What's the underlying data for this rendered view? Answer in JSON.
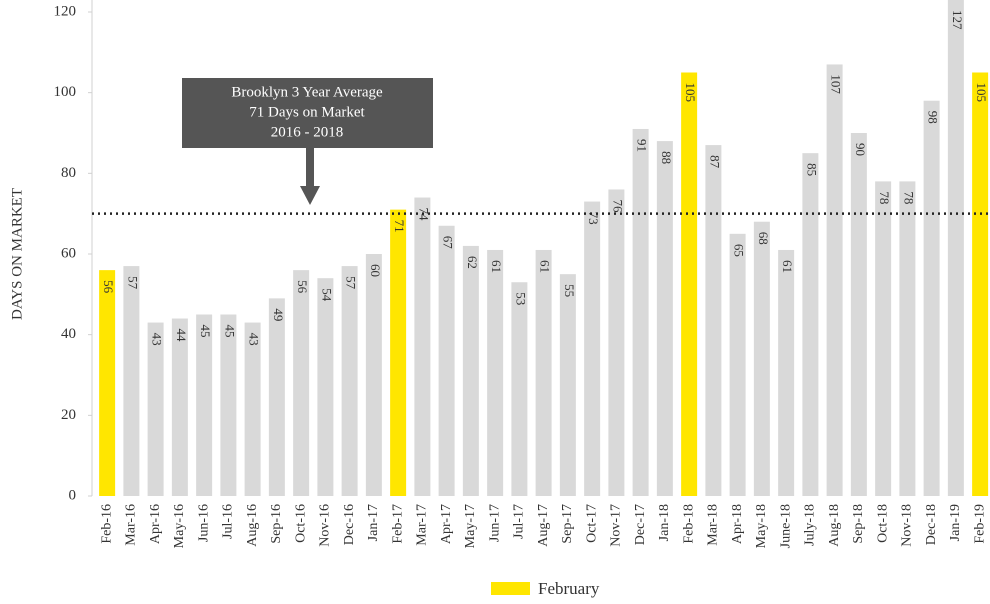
{
  "chart_data": {
    "type": "bar",
    "y_label": "DAYS ON MARKET",
    "categories": [
      "Feb-16",
      "Mar-16",
      "Apr-16",
      "May-16",
      "Jun-16",
      "Jul-16",
      "Aug-16",
      "Sep-16",
      "Oct-16",
      "Nov-16",
      "Dec-16",
      "Jan-17",
      "Feb-17",
      "Mar-17",
      "Apr-17",
      "May-17",
      "Jun-17",
      "Jul-17",
      "Aug-17",
      "Sep-17",
      "Oct-17",
      "Nov-17",
      "Dec-17",
      "Jan-18",
      "Feb-18",
      "Mar-18",
      "Apr-18",
      "May-18",
      "June-18",
      "July-18",
      "Aug-18",
      "Sep-18",
      "Oct-18",
      "Nov-18",
      "Dec-18",
      "Jan-19",
      "Feb-19"
    ],
    "values": [
      56,
      57,
      43,
      44,
      45,
      45,
      43,
      49,
      56,
      54,
      57,
      60,
      71,
      74,
      67,
      62,
      61,
      53,
      61,
      55,
      73,
      76,
      91,
      88,
      105,
      87,
      65,
      68,
      61,
      85,
      107,
      90,
      78,
      78,
      98,
      127,
      105
    ],
    "colors": [
      "#ffe600",
      "#d9d9d9",
      "#d9d9d9",
      "#d9d9d9",
      "#d9d9d9",
      "#d9d9d9",
      "#d9d9d9",
      "#d9d9d9",
      "#d9d9d9",
      "#d9d9d9",
      "#d9d9d9",
      "#d9d9d9",
      "#ffe600",
      "#d9d9d9",
      "#d9d9d9",
      "#d9d9d9",
      "#d9d9d9",
      "#d9d9d9",
      "#d9d9d9",
      "#d9d9d9",
      "#d9d9d9",
      "#d9d9d9",
      "#d9d9d9",
      "#d9d9d9",
      "#ffe600",
      "#d9d9d9",
      "#d9d9d9",
      "#d9d9d9",
      "#d9d9d9",
      "#d9d9d9",
      "#d9d9d9",
      "#d9d9d9",
      "#d9d9d9",
      "#d9d9d9",
      "#d9d9d9",
      "#d9d9d9",
      "#ffe600"
    ],
    "ylim": [
      0,
      120
    ],
    "yticks": [
      0,
      20,
      40,
      60,
      80,
      100,
      120
    ],
    "grid": false,
    "average_line": 70,
    "annotation": {
      "lines": [
        "Brooklyn 3 Year Average",
        "71 Days on Market",
        "2016 - 2018"
      ]
    },
    "legend": [
      {
        "label": "February",
        "color": "#ffe600"
      }
    ]
  }
}
